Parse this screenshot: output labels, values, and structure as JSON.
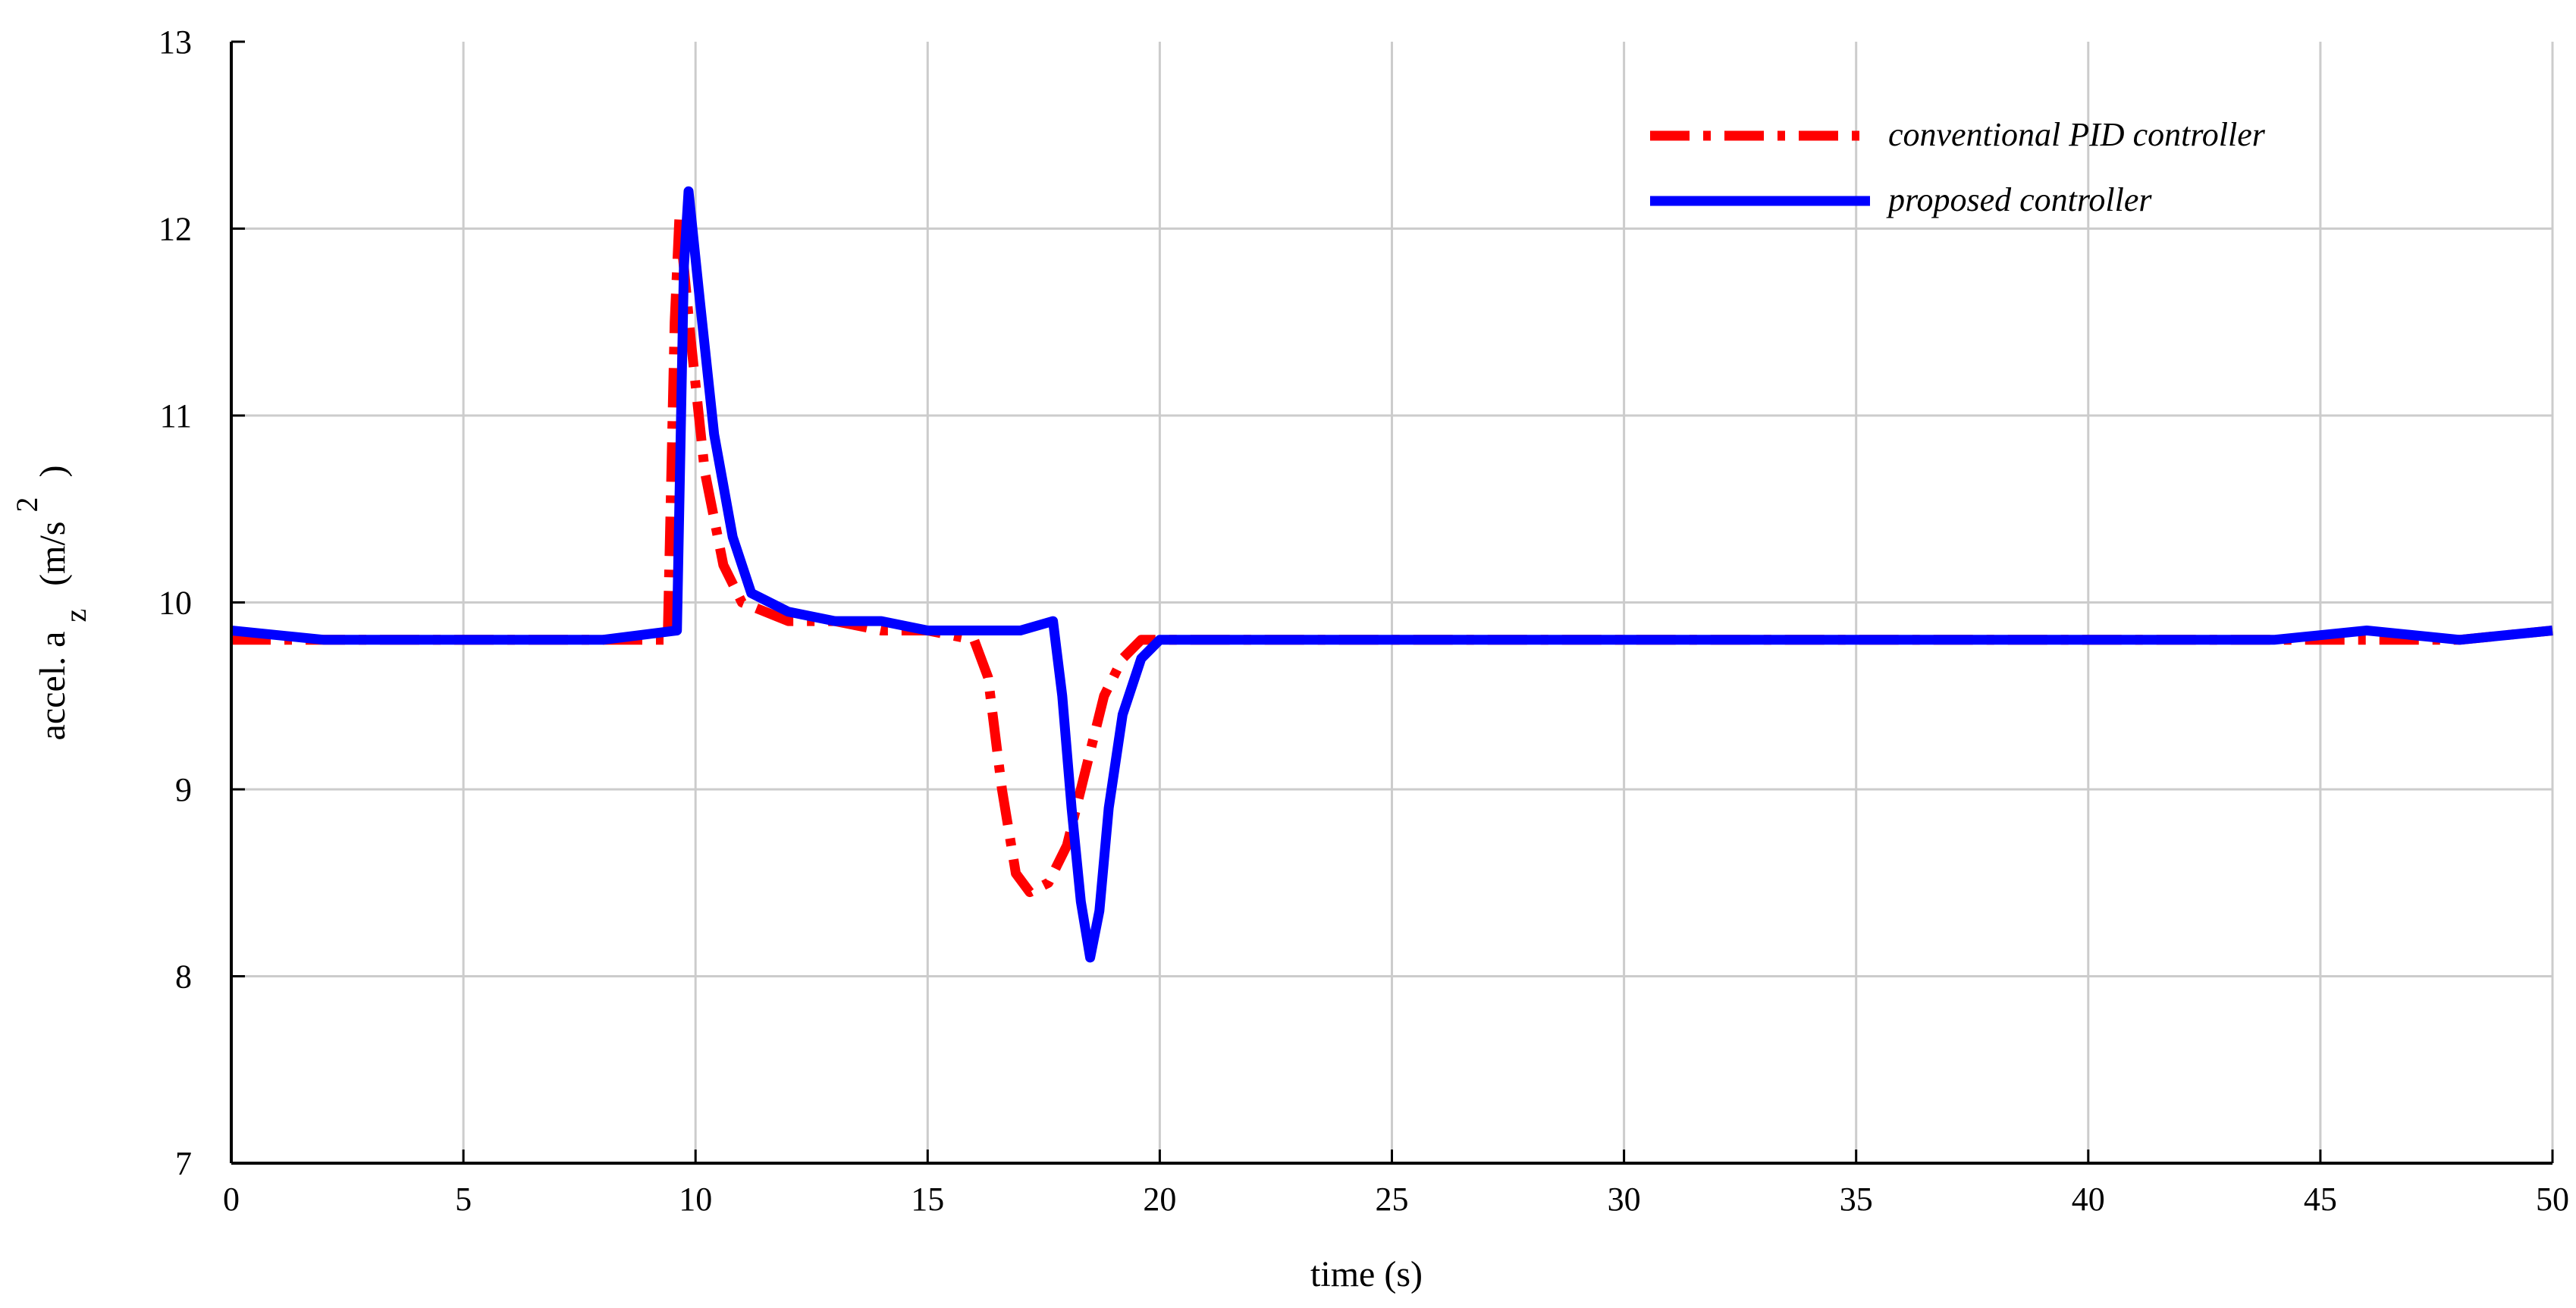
{
  "chart_data": {
    "type": "line",
    "xlabel": "time (s)",
    "ylabel": "accel. a",
    "ylabel_subscript": "z",
    "ylabel_unit": "(m/s",
    "ylabel_superscript": "2",
    "ylabel_close": ")",
    "xlim": [
      0,
      50
    ],
    "ylim": [
      7,
      13
    ],
    "xticks": [
      "0",
      "5",
      "10",
      "15",
      "20",
      "25",
      "30",
      "35",
      "40",
      "45",
      "50"
    ],
    "yticks": [
      "7",
      "8",
      "9",
      "10",
      "11",
      "12",
      "13"
    ],
    "grid": true,
    "legend_position": "top-right",
    "colors": {
      "pid": "#ff0000",
      "proposed": "#0000ff"
    },
    "series": [
      {
        "name": "conventional PID controller",
        "style": "dash-dot",
        "x": [
          0,
          2,
          4,
          6,
          8,
          9.4,
          9.55,
          9.65,
          9.9,
          10.2,
          10.6,
          11.0,
          12,
          13,
          14,
          15,
          16,
          16.3,
          16.6,
          16.9,
          17.2,
          17.6,
          18.0,
          18.4,
          18.8,
          19.2,
          19.6,
          20,
          22,
          24,
          26,
          28,
          30,
          32,
          34,
          36,
          38,
          40,
          42,
          44,
          46,
          48,
          50
        ],
        "y": [
          9.8,
          9.8,
          9.8,
          9.8,
          9.8,
          9.8,
          11.5,
          12.05,
          11.4,
          10.7,
          10.2,
          10.0,
          9.9,
          9.9,
          9.85,
          9.85,
          9.8,
          9.6,
          9.0,
          8.55,
          8.45,
          8.5,
          8.7,
          9.1,
          9.5,
          9.7,
          9.8,
          9.8,
          9.8,
          9.8,
          9.8,
          9.8,
          9.8,
          9.8,
          9.8,
          9.8,
          9.8,
          9.8,
          9.8,
          9.8,
          9.8,
          9.8,
          9.85
        ]
      },
      {
        "name": "proposed controller",
        "style": "solid",
        "x": [
          0,
          2,
          4,
          6,
          8,
          9.6,
          9.75,
          9.85,
          10.1,
          10.4,
          10.8,
          11.2,
          12,
          13,
          14,
          15,
          16,
          17,
          17.7,
          17.9,
          18.1,
          18.3,
          18.5,
          18.7,
          18.9,
          19.2,
          19.6,
          20,
          22,
          24,
          26,
          28,
          30,
          32,
          34,
          36,
          38,
          40,
          42,
          44,
          46,
          48,
          50
        ],
        "y": [
          9.85,
          9.8,
          9.8,
          9.8,
          9.8,
          9.85,
          11.8,
          12.2,
          11.6,
          10.9,
          10.35,
          10.05,
          9.95,
          9.9,
          9.9,
          9.85,
          9.85,
          9.85,
          9.9,
          9.5,
          8.9,
          8.4,
          8.1,
          8.35,
          8.9,
          9.4,
          9.7,
          9.8,
          9.8,
          9.8,
          9.8,
          9.8,
          9.8,
          9.8,
          9.8,
          9.8,
          9.8,
          9.8,
          9.8,
          9.8,
          9.85,
          9.8,
          9.85
        ]
      }
    ]
  }
}
